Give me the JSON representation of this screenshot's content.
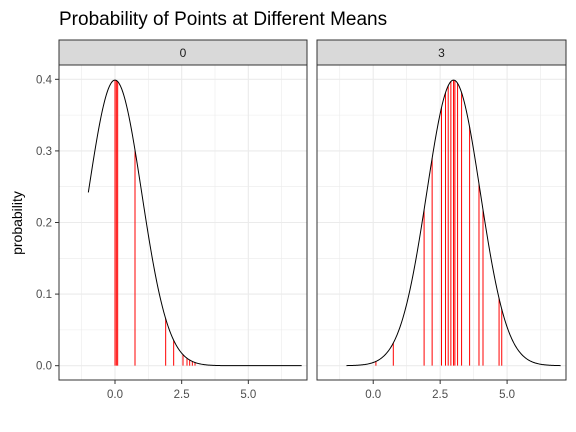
{
  "chart_data": {
    "type": "line",
    "title": "Probability of Points at Different Means",
    "xlabel": "",
    "ylabel": "probability",
    "xlim": [
      -2.1,
      7.2
    ],
    "ylim": [
      -0.02,
      0.42
    ],
    "x_ticks": [
      0,
      2.5,
      5
    ],
    "x_tick_labels": [
      "0.0",
      "2.5",
      "5.0"
    ],
    "y_ticks": [
      0,
      0.1,
      0.2,
      0.3,
      0.4
    ],
    "y_tick_labels": [
      "0.0",
      "0.1",
      "0.2",
      "0.3",
      "0.4"
    ],
    "grid": true,
    "curve": {
      "distribution": "normal",
      "sd": 1,
      "x_range": [
        -1.0,
        7.0
      ]
    },
    "colors": {
      "curve": "#000000",
      "points": "#ff0000",
      "strip_bg": "#d9d9d9",
      "grid": "#ebebeb"
    },
    "panels": [
      {
        "label": "0",
        "mean": 0,
        "points": [
          0.0,
          0.05,
          0.1,
          0.75,
          1.9,
          2.2,
          2.55,
          2.7,
          2.8,
          2.9,
          3.0
        ]
      },
      {
        "label": "3",
        "mean": 3,
        "points": [
          0.1,
          0.75,
          1.9,
          2.2,
          2.55,
          2.7,
          2.8,
          2.9,
          3.0,
          3.05,
          3.15,
          3.3,
          3.6,
          3.95,
          4.1,
          4.7,
          4.8
        ]
      }
    ]
  }
}
